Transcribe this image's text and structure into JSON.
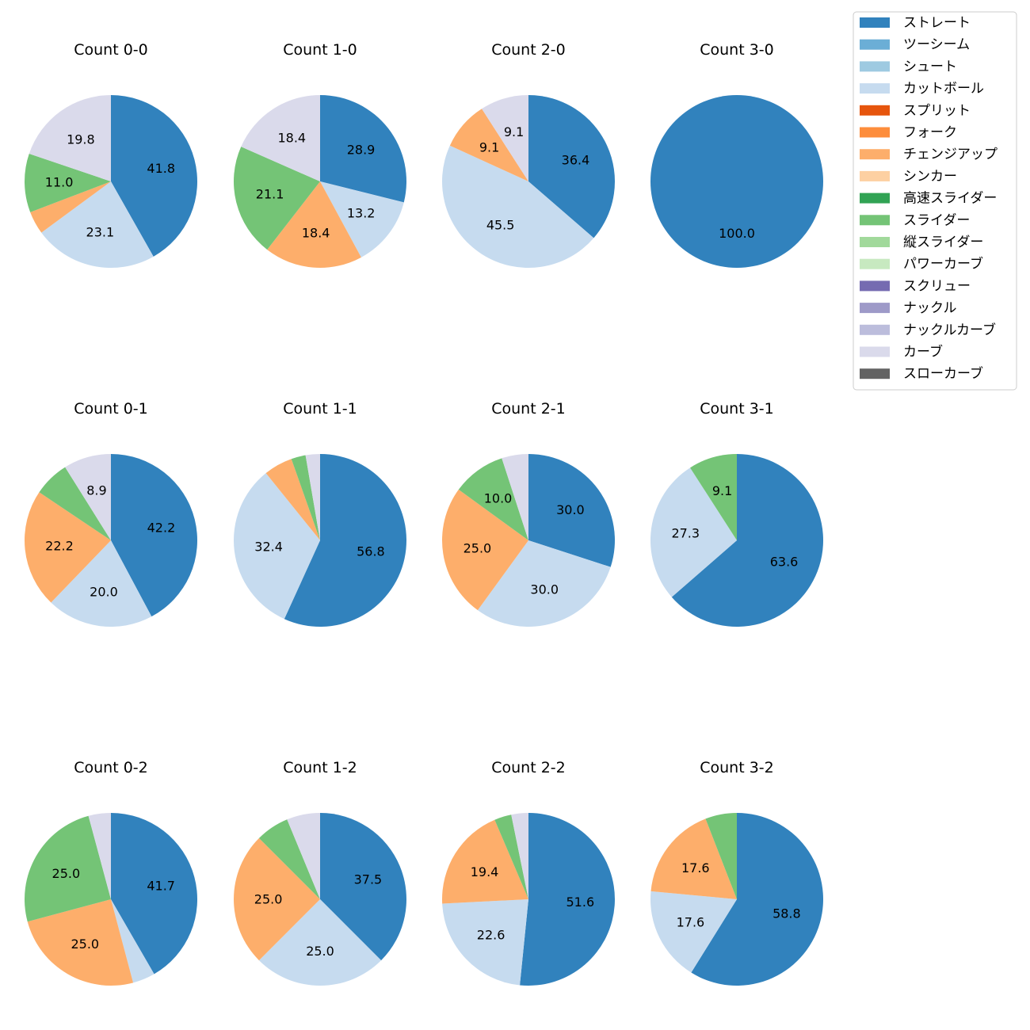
{
  "chart_data": {
    "type": "pie",
    "legend": {
      "placement": "top-right",
      "entries": [
        {
          "name": "ストレート",
          "color": "#3182bd"
        },
        {
          "name": "ツーシーム",
          "color": "#6baed6"
        },
        {
          "name": "シュート",
          "color": "#9ecae1"
        },
        {
          "name": "カットボール",
          "color": "#c6dbef"
        },
        {
          "name": "スプリット",
          "color": "#e6550d"
        },
        {
          "name": "フォーク",
          "color": "#fd8d3c"
        },
        {
          "name": "チェンジアップ",
          "color": "#fdae6b"
        },
        {
          "name": "シンカー",
          "color": "#fdd0a2"
        },
        {
          "name": "高速スライダー",
          "color": "#31a354"
        },
        {
          "name": "スライダー",
          "color": "#74c476"
        },
        {
          "name": "縦スライダー",
          "color": "#a1d99b"
        },
        {
          "name": "パワーカーブ",
          "color": "#c7e9c0"
        },
        {
          "name": "スクリュー",
          "color": "#756bb1"
        },
        {
          "name": "ナックル",
          "color": "#9e9ac8"
        },
        {
          "name": "ナックルカーブ",
          "color": "#bcbddc"
        },
        {
          "name": "カーブ",
          "color": "#dadaeb"
        },
        {
          "name": "スローカーブ",
          "color": "#636363"
        }
      ]
    },
    "pies": [
      {
        "title": "Count 0-0",
        "slices": [
          {
            "pitch": "ストレート",
            "value": 41.8,
            "label": "41.8"
          },
          {
            "pitch": "カットボール",
            "value": 23.1,
            "label": "23.1"
          },
          {
            "pitch": "チェンジアップ",
            "value": 4.3,
            "label": ""
          },
          {
            "pitch": "スライダー",
            "value": 11.0,
            "label": "11.0"
          },
          {
            "pitch": "カーブ",
            "value": 19.8,
            "label": "19.8"
          }
        ]
      },
      {
        "title": "Count 1-0",
        "slices": [
          {
            "pitch": "ストレート",
            "value": 28.9,
            "label": "28.9"
          },
          {
            "pitch": "カットボール",
            "value": 13.2,
            "label": "13.2"
          },
          {
            "pitch": "チェンジアップ",
            "value": 18.4,
            "label": "18.4"
          },
          {
            "pitch": "スライダー",
            "value": 21.1,
            "label": "21.1"
          },
          {
            "pitch": "カーブ",
            "value": 18.4,
            "label": "18.4"
          }
        ]
      },
      {
        "title": "Count 2-0",
        "slices": [
          {
            "pitch": "ストレート",
            "value": 36.4,
            "label": "36.4"
          },
          {
            "pitch": "カットボール",
            "value": 45.5,
            "label": "45.5"
          },
          {
            "pitch": "チェンジアップ",
            "value": 9.1,
            "label": "9.1"
          },
          {
            "pitch": "カーブ",
            "value": 9.1,
            "label": "9.1"
          }
        ]
      },
      {
        "title": "Count 3-0",
        "slices": [
          {
            "pitch": "ストレート",
            "value": 100.0,
            "label": "100.0"
          }
        ]
      },
      {
        "title": "Count 0-1",
        "slices": [
          {
            "pitch": "ストレート",
            "value": 42.2,
            "label": "42.2"
          },
          {
            "pitch": "カットボール",
            "value": 20.0,
            "label": "20.0"
          },
          {
            "pitch": "チェンジアップ",
            "value": 22.2,
            "label": "22.2"
          },
          {
            "pitch": "スライダー",
            "value": 6.7,
            "label": ""
          },
          {
            "pitch": "カーブ",
            "value": 8.9,
            "label": "8.9"
          }
        ]
      },
      {
        "title": "Count 1-1",
        "slices": [
          {
            "pitch": "ストレート",
            "value": 56.8,
            "label": "56.8"
          },
          {
            "pitch": "カットボール",
            "value": 32.4,
            "label": "32.4"
          },
          {
            "pitch": "チェンジアップ",
            "value": 5.4,
            "label": ""
          },
          {
            "pitch": "スライダー",
            "value": 2.7,
            "label": ""
          },
          {
            "pitch": "カーブ",
            "value": 2.7,
            "label": ""
          }
        ]
      },
      {
        "title": "Count 2-1",
        "slices": [
          {
            "pitch": "ストレート",
            "value": 30.0,
            "label": "30.0"
          },
          {
            "pitch": "カットボール",
            "value": 30.0,
            "label": "30.0"
          },
          {
            "pitch": "チェンジアップ",
            "value": 25.0,
            "label": "25.0"
          },
          {
            "pitch": "スライダー",
            "value": 10.0,
            "label": "10.0"
          },
          {
            "pitch": "カーブ",
            "value": 5.0,
            "label": ""
          }
        ]
      },
      {
        "title": "Count 3-1",
        "slices": [
          {
            "pitch": "ストレート",
            "value": 63.6,
            "label": "63.6"
          },
          {
            "pitch": "カットボール",
            "value": 27.3,
            "label": "27.3"
          },
          {
            "pitch": "スライダー",
            "value": 9.1,
            "label": "9.1"
          }
        ]
      },
      {
        "title": "Count 0-2",
        "slices": [
          {
            "pitch": "ストレート",
            "value": 41.7,
            "label": "41.7"
          },
          {
            "pitch": "カットボール",
            "value": 4.2,
            "label": ""
          },
          {
            "pitch": "チェンジアップ",
            "value": 25.0,
            "label": "25.0"
          },
          {
            "pitch": "スライダー",
            "value": 25.0,
            "label": "25.0"
          },
          {
            "pitch": "カーブ",
            "value": 4.2,
            "label": ""
          }
        ]
      },
      {
        "title": "Count 1-2",
        "slices": [
          {
            "pitch": "ストレート",
            "value": 37.5,
            "label": "37.5"
          },
          {
            "pitch": "カットボール",
            "value": 25.0,
            "label": "25.0"
          },
          {
            "pitch": "チェンジアップ",
            "value": 25.0,
            "label": "25.0"
          },
          {
            "pitch": "スライダー",
            "value": 6.25,
            "label": ""
          },
          {
            "pitch": "カーブ",
            "value": 6.25,
            "label": ""
          }
        ]
      },
      {
        "title": "Count 2-2",
        "slices": [
          {
            "pitch": "ストレート",
            "value": 51.6,
            "label": "51.6"
          },
          {
            "pitch": "カットボール",
            "value": 22.6,
            "label": "22.6"
          },
          {
            "pitch": "チェンジアップ",
            "value": 19.4,
            "label": "19.4"
          },
          {
            "pitch": "スライダー",
            "value": 3.2,
            "label": ""
          },
          {
            "pitch": "カーブ",
            "value": 3.2,
            "label": ""
          }
        ]
      },
      {
        "title": "Count 3-2",
        "slices": [
          {
            "pitch": "ストレート",
            "value": 58.8,
            "label": "58.8"
          },
          {
            "pitch": "カットボール",
            "value": 17.6,
            "label": "17.6"
          },
          {
            "pitch": "チェンジアップ",
            "value": 17.6,
            "label": "17.6"
          },
          {
            "pitch": "スライダー",
            "value": 5.9,
            "label": ""
          }
        ]
      }
    ]
  }
}
